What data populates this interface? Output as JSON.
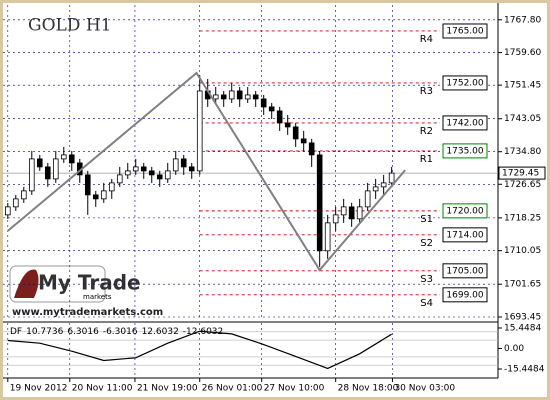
{
  "chart_data": {
    "type": "candlestick",
    "title": "GOLD H1",
    "candles": {
      "open": [
        1719,
        1721,
        1723,
        1725,
        1733,
        1731,
        1728,
        1733,
        1734,
        1732,
        1729,
        1724,
        1723,
        1725,
        1727,
        1729,
        1730,
        1731,
        1730,
        1729,
        1728,
        1730,
        1733,
        1731,
        1730,
        1750,
        1748,
        1749,
        1748,
        1750,
        1748,
        1749,
        1748,
        1746,
        1745,
        1742,
        1741,
        1738,
        1737,
        1734,
        1710,
        1717,
        1719,
        1721,
        1718,
        1721,
        1725,
        1726,
        1727
      ],
      "high": [
        1722,
        1724,
        1726,
        1735,
        1734,
        1732,
        1735,
        1736,
        1735,
        1733,
        1730,
        1725,
        1727,
        1728,
        1731,
        1732,
        1733,
        1732,
        1731,
        1730,
        1732,
        1735,
        1734,
        1732,
        1754,
        1753,
        1751,
        1750,
        1752,
        1751,
        1751,
        1750,
        1749,
        1747,
        1746,
        1744,
        1742,
        1740,
        1738,
        1735,
        1719,
        1721,
        1723,
        1722,
        1723,
        1727,
        1728,
        1729,
        1731
      ],
      "low": [
        1718,
        1720,
        1722,
        1724,
        1730,
        1726,
        1727,
        1732,
        1730,
        1727,
        1719,
        1721,
        1722,
        1723,
        1726,
        1728,
        1729,
        1728,
        1727,
        1726,
        1727,
        1729,
        1729,
        1728,
        1729,
        1746,
        1747,
        1746,
        1747,
        1746,
        1747,
        1746,
        1744,
        1743,
        1740,
        1739,
        1736,
        1735,
        1731,
        1706,
        1708,
        1715,
        1717,
        1716,
        1717,
        1720,
        1723,
        1724,
        1726
      ],
      "close": [
        1721,
        1723,
        1725,
        1733,
        1731,
        1728,
        1733,
        1734,
        1732,
        1729,
        1724,
        1723,
        1725,
        1727,
        1729,
        1730,
        1731,
        1730,
        1729,
        1728,
        1730,
        1733,
        1731,
        1730,
        1750,
        1748,
        1749,
        1748,
        1750,
        1748,
        1749,
        1748,
        1746,
        1745,
        1742,
        1741,
        1738,
        1737,
        1734,
        1710,
        1717,
        1719,
        1721,
        1718,
        1721,
        1725,
        1726,
        1727,
        1729.45
      ]
    },
    "up_color": "#ffffff",
    "down_color": "#000000",
    "zigzag": {
      "x": [
        0,
        23.6,
        39,
        49.7
      ],
      "y": [
        1715,
        1754.5,
        1705.2,
        1730.2
      ],
      "color": "#808080"
    },
    "last_price": 1729.45,
    "levels": [
      {
        "name": "R4",
        "value": {
          "value": 1765,
          "label": "1765.00"
        },
        "color": "#cc0000",
        "box_color": "#000000"
      },
      {
        "name": "R3",
        "value": {
          "value": 1752,
          "label": "1752.00"
        },
        "color": "#cc0000",
        "box_color": "#000000"
      },
      {
        "name": "R2",
        "value": {
          "value": 1742,
          "label": "1742.00"
        },
        "color": "#cc0000",
        "box_color": "#000000"
      },
      {
        "name": "R1",
        "value": {
          "value": 1735,
          "label": "1735.00"
        },
        "color": "#cc0000",
        "box_color": "#008000"
      },
      {
        "name": "S1",
        "value": {
          "value": 1720,
          "label": "1720.00"
        },
        "color": "#cc0000",
        "box_color": "#008000"
      },
      {
        "name": "S2",
        "value": {
          "value": 1714,
          "label": "1714.00"
        },
        "color": "#cc0000",
        "box_color": "#000000"
      },
      {
        "name": "S3",
        "value": {
          "value": 1705,
          "label": "1705.00"
        },
        "color": "#cc0000",
        "box_color": "#000000"
      },
      {
        "name": "S4",
        "value": {
          "value": 1699,
          "label": "1699.00"
        },
        "color": "#cc0000",
        "box_color": "#000000"
      }
    ],
    "xlim": [
      -0.6,
      61.3
    ],
    "ylim": [
      1692.7,
      1771.5
    ],
    "yticks": [
      {
        "value": 1767.8,
        "label": "1767.80"
      },
      {
        "value": 1759.6,
        "label": "1759.60"
      },
      1751.45,
      1743.05,
      {
        "value": 1734.8,
        "label": "1734.80"
      },
      1726.65,
      1718.25,
      1710.05,
      1701.65,
      1693.45
    ],
    "xticks": [
      {
        "value": 0,
        "label": "19 Nov 2012"
      },
      {
        "value": 7.75,
        "label": "20 Nov 11:00"
      },
      {
        "value": 15.9,
        "label": "21 Nov 19:00"
      },
      {
        "value": 24,
        "label": "26 Nov 01:00"
      },
      {
        "value": 31.75,
        "label": "27 Nov 10:00"
      },
      {
        "value": 41,
        "label": "28 Nov 18:00"
      },
      {
        "value": 48.1,
        "label": "30 Nov 03:00"
      }
    ],
    "grid": true,
    "indicator": {
      "name": "DF",
      "value": 10.7736,
      "levels": [
        6.3016,
        -6.3016,
        12.6032,
        -12.6032
      ],
      "x": [
        0,
        4,
        8,
        12,
        16,
        20,
        24,
        28,
        32,
        36,
        40,
        44,
        48
      ],
      "values": [
        6,
        4,
        -2,
        -9,
        -7,
        4,
        13,
        11,
        3,
        -6,
        -15,
        -4,
        10.7736
      ],
      "ylim": [
        -20.7,
        19.2
      ],
      "yticks": [
        15.4484,
        {
          "value": 0,
          "label": "0.00"
        },
        -15.4484
      ],
      "color": "#000000"
    }
  },
  "branding": {
    "logo": "My Trade",
    "logo_sub": "markets",
    "url": "www.mytrademarkets.com"
  }
}
